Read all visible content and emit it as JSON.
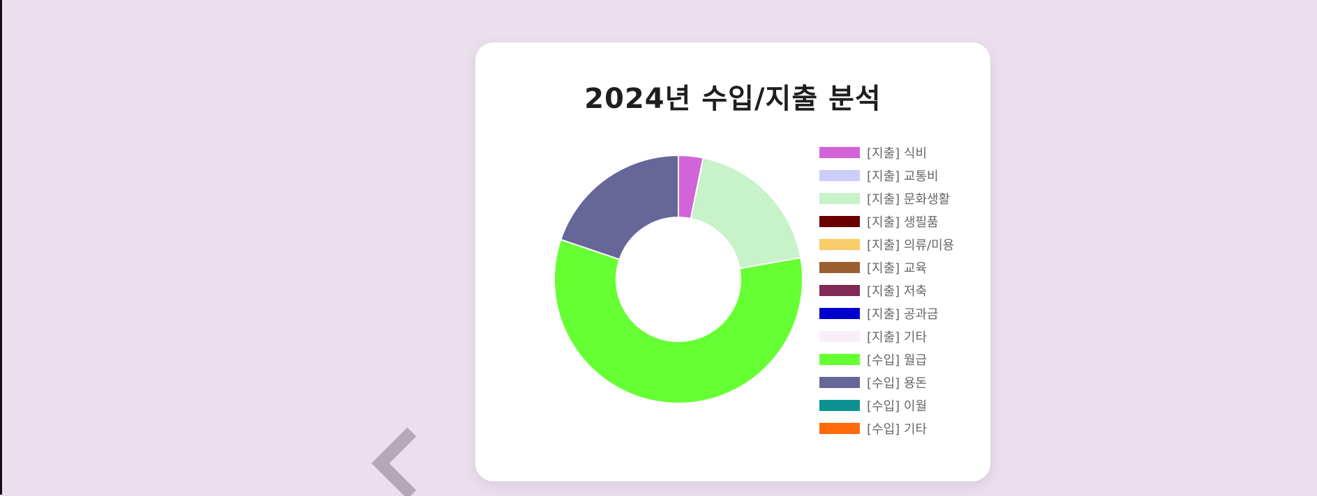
{
  "chart_data": {
    "type": "doughnut",
    "title": "2024년 수입/지출 분석",
    "legend_position": "right",
    "series": [
      {
        "label": "[지출] 식비",
        "value": 3.2,
        "color": "#d363d8"
      },
      {
        "label": "[지출] 교통비",
        "value": 0,
        "color": "#cccdf9"
      },
      {
        "label": "[지출] 문화생활",
        "value": 19,
        "color": "#c8f2c9"
      },
      {
        "label": "[지출] 생필품",
        "value": 0,
        "color": "#6a0000"
      },
      {
        "label": "[지출] 의류/미용",
        "value": 0,
        "color": "#facd6b"
      },
      {
        "label": "[지출] 교육",
        "value": 0,
        "color": "#9b5e2e"
      },
      {
        "label": "[지출] 저축",
        "value": 0,
        "color": "#822a56"
      },
      {
        "label": "[지출] 공과금",
        "value": 0,
        "color": "#0000cc"
      },
      {
        "label": "[지출] 기타",
        "value": 0,
        "color": "#f8eff8"
      },
      {
        "label": "[수입] 월급",
        "value": 58,
        "color": "#66ff33"
      },
      {
        "label": "[수입] 용돈",
        "value": 19.8,
        "color": "#666699"
      },
      {
        "label": "[수입] 이월",
        "value": 0,
        "color": "#0e9191"
      },
      {
        "label": "[수입] 기타",
        "value": 0,
        "color": "#ff6a0a"
      }
    ]
  },
  "nav": {
    "prev_icon": "chevron-left-icon"
  }
}
